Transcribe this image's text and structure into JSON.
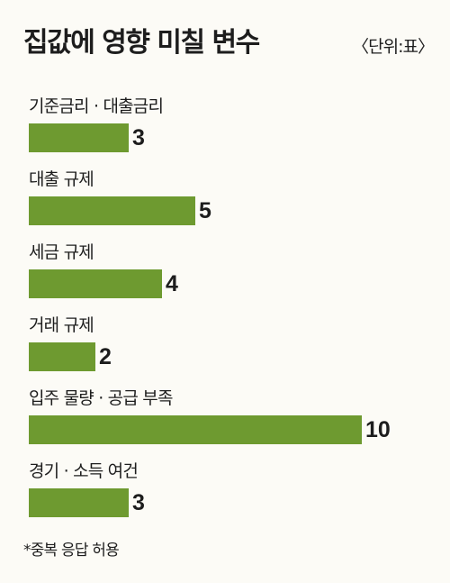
{
  "chart_data": {
    "type": "bar",
    "title": "집값에 영향 미칠 변수",
    "unit": "〈단위:표〉",
    "categories": [
      "기준금리 · 대출금리",
      "대출 규제",
      "세금 규제",
      "거래 규제",
      "입주 물량 · 공급 부족",
      "경기 · 소득 여건"
    ],
    "values": [
      3,
      5,
      4,
      2,
      10,
      3
    ],
    "xlim": [
      0,
      10
    ],
    "orientation": "horizontal",
    "bar_color": "#6e9a30",
    "footnote": "*중복 응답 허용"
  }
}
